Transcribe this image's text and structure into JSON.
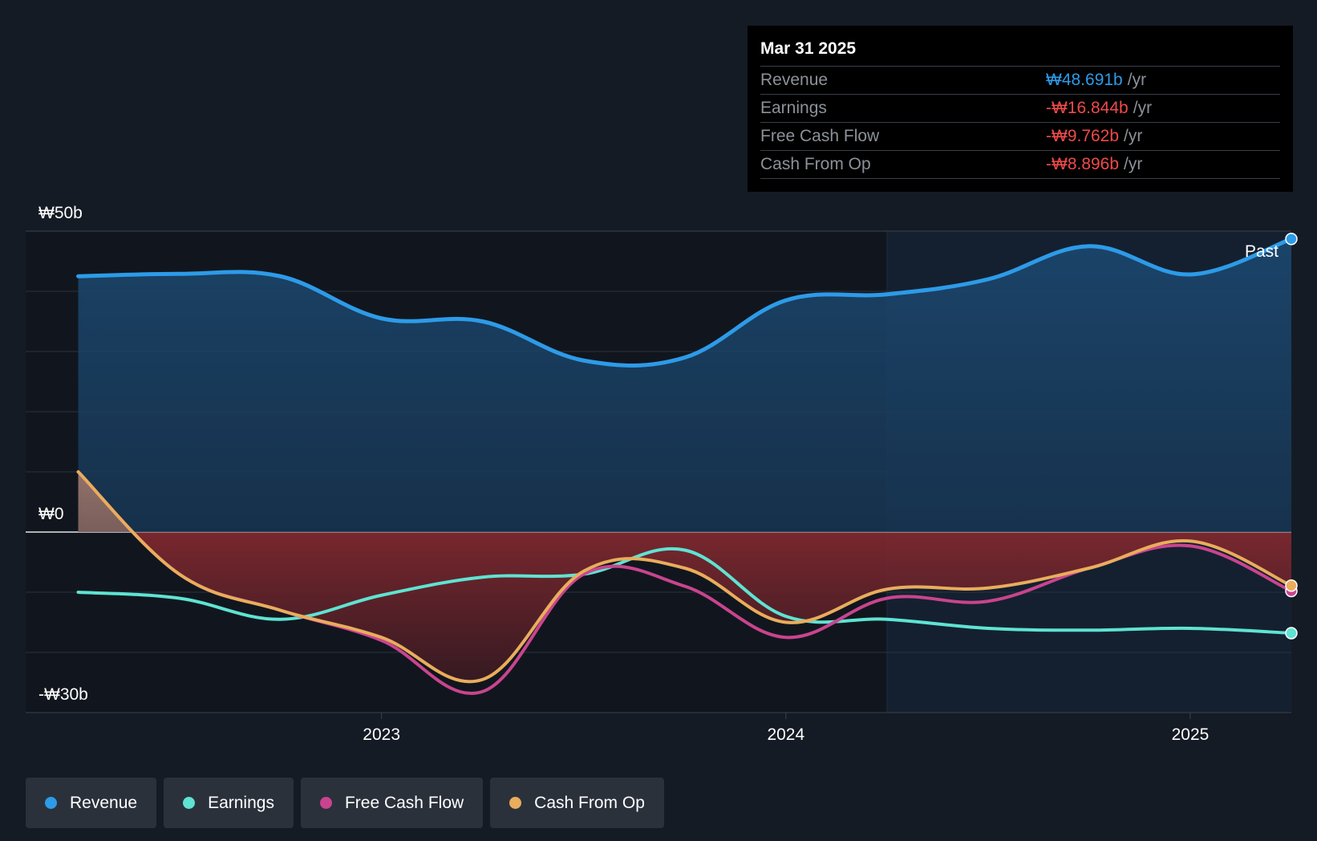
{
  "tooltip": {
    "date": "Mar 31 2025",
    "rows": [
      {
        "label": "Revenue",
        "value": "₩48.691b",
        "unit": "/yr",
        "color": "#2d9be8"
      },
      {
        "label": "Earnings",
        "value": "-₩16.844b",
        "unit": "/yr",
        "color": "#f04a4a"
      },
      {
        "label": "Free Cash Flow",
        "value": "-₩9.762b",
        "unit": "/yr",
        "color": "#f04a4a"
      },
      {
        "label": "Cash From Op",
        "value": "-₩8.896b",
        "unit": "/yr",
        "color": "#f04a4a"
      }
    ]
  },
  "legend": [
    {
      "label": "Revenue",
      "color": "#2d9be8"
    },
    {
      "label": "Earnings",
      "color": "#5fe3d2"
    },
    {
      "label": "Free Cash Flow",
      "color": "#c9448e"
    },
    {
      "label": "Cash From Op",
      "color": "#e9ad5c"
    }
  ],
  "past_label": "Past",
  "chart_data": {
    "type": "line",
    "ylim": [
      -30,
      50
    ],
    "y_tick_labels": [
      {
        "value": 50,
        "label": "₩50b"
      },
      {
        "value": 0,
        "label": "₩0"
      },
      {
        "value": -30,
        "label": "-₩30b"
      }
    ],
    "x_tick_labels": [
      {
        "value": 2023.0,
        "label": "2023"
      },
      {
        "value": 2024.0,
        "label": "2024"
      },
      {
        "value": 2025.0,
        "label": "2025"
      }
    ],
    "xlim": [
      2022.12,
      2025.25
    ],
    "past_start": 2024.25,
    "grid": true,
    "series": [
      {
        "name": "Revenue",
        "color": "#2d9be8",
        "points": [
          [
            2022.25,
            42.5
          ],
          [
            2022.5,
            42.9
          ],
          [
            2022.75,
            42.5
          ],
          [
            2023.0,
            35.5
          ],
          [
            2023.25,
            35.0
          ],
          [
            2023.5,
            28.5
          ],
          [
            2023.75,
            29.0
          ],
          [
            2024.0,
            38.5
          ],
          [
            2024.25,
            39.5
          ],
          [
            2024.5,
            42.0
          ],
          [
            2024.75,
            47.5
          ],
          [
            2025.0,
            42.8
          ],
          [
            2025.25,
            48.7
          ]
        ]
      },
      {
        "name": "Earnings",
        "color": "#5fe3d2",
        "points": [
          [
            2022.25,
            -10.0
          ],
          [
            2022.5,
            -11.0
          ],
          [
            2022.75,
            -14.5
          ],
          [
            2023.0,
            -10.5
          ],
          [
            2023.25,
            -7.5
          ],
          [
            2023.5,
            -7.0
          ],
          [
            2023.75,
            -3.0
          ],
          [
            2024.0,
            -14.0
          ],
          [
            2024.25,
            -14.5
          ],
          [
            2024.5,
            -16.0
          ],
          [
            2024.75,
            -16.3
          ],
          [
            2025.0,
            -16.0
          ],
          [
            2025.25,
            -16.8
          ]
        ]
      },
      {
        "name": "Free Cash Flow",
        "color": "#c9448e",
        "points": [
          [
            2022.25,
            10.0
          ],
          [
            2022.5,
            -7.0
          ],
          [
            2022.75,
            -13.0
          ],
          [
            2023.0,
            -18.0
          ],
          [
            2023.25,
            -26.5
          ],
          [
            2023.5,
            -7.0
          ],
          [
            2023.75,
            -9.0
          ],
          [
            2024.0,
            -17.5
          ],
          [
            2024.25,
            -11.0
          ],
          [
            2024.5,
            -11.5
          ],
          [
            2024.75,
            -6.0
          ],
          [
            2025.0,
            -2.3
          ],
          [
            2025.25,
            -9.8
          ]
        ]
      },
      {
        "name": "Cash From Op",
        "color": "#e9ad5c",
        "points": [
          [
            2022.25,
            10.0
          ],
          [
            2022.5,
            -7.0
          ],
          [
            2022.75,
            -13.0
          ],
          [
            2023.0,
            -17.5
          ],
          [
            2023.25,
            -24.5
          ],
          [
            2023.5,
            -6.5
          ],
          [
            2023.75,
            -6.0
          ],
          [
            2024.0,
            -15.0
          ],
          [
            2024.25,
            -9.5
          ],
          [
            2024.5,
            -9.3
          ],
          [
            2024.75,
            -6.0
          ],
          [
            2025.0,
            -1.5
          ],
          [
            2025.25,
            -8.9
          ]
        ]
      }
    ]
  }
}
